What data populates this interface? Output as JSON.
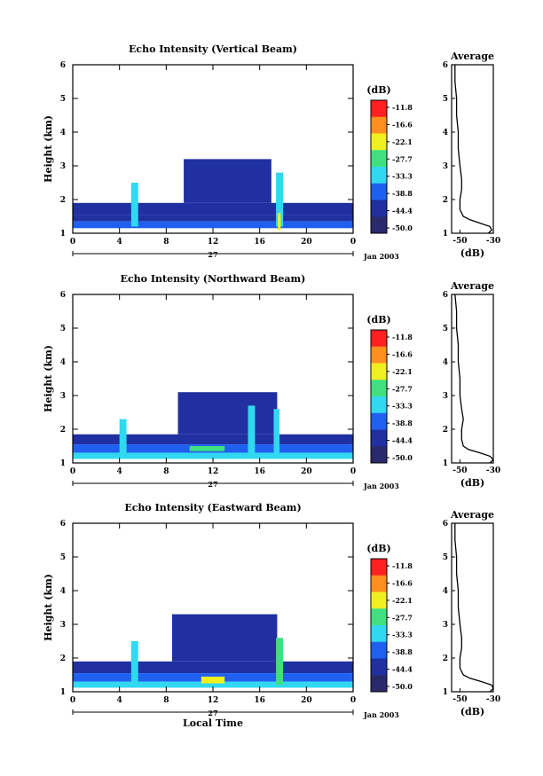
{
  "figure": {
    "x_axis_label": "Local Time",
    "day_label": "27",
    "month_label": "Jan 2003",
    "x_tick_labels": [
      "0",
      "4",
      "8",
      "12",
      "16",
      "20",
      "0"
    ],
    "y_axis_label": "Height (km)",
    "y_tick_labels": [
      "1",
      "2",
      "3",
      "4",
      "5",
      "6"
    ],
    "colorbar_unit": "(dB)",
    "colorbar_labels": [
      "-11.8",
      "-16.6",
      "-22.1",
      "-27.7",
      "-33.3",
      "-38.8",
      "-44.4",
      "-50.0"
    ],
    "profile_title": "Average",
    "profile_x_label": "(dB)",
    "profile_x_ticks": [
      "-50",
      "-30"
    ],
    "colors": {
      "red": "#ff2020",
      "orange": "#ff9020",
      "yellow": "#f0f020",
      "green": "#40e080",
      "cyan": "#30d8f0",
      "blue": "#2060f0",
      "dark_blue": "#2030a0",
      "navy": "#2a2a6a"
    }
  },
  "chart_data": [
    {
      "type": "heatmap",
      "title": "Echo Intensity (Vertical Beam)",
      "xlabel": "",
      "ylabel": "Height (km)",
      "xlim": [
        0,
        24
      ],
      "ylim": [
        1,
        6
      ],
      "x_ticks": [
        0,
        4,
        8,
        12,
        16,
        20,
        24
      ],
      "zlim": [
        -50.0,
        -11.8
      ],
      "z_unit": "dB",
      "layers": [
        {
          "x0": 0.0,
          "x1": 24.0,
          "y0": 1.55,
          "y1": 1.9,
          "z": -46.0
        },
        {
          "x0": 0.0,
          "x1": 24.0,
          "y0": 1.35,
          "y1": 1.55,
          "z": -42.0
        },
        {
          "x0": 0.0,
          "x1": 24.0,
          "y0": 1.15,
          "y1": 1.35,
          "z": -37.0
        },
        {
          "x0": 9.5,
          "x1": 17.0,
          "y0": 1.9,
          "y1": 3.2,
          "z": -46.0
        },
        {
          "x0": 11.0,
          "x1": 13.5,
          "y0": 2.0,
          "y1": 3.0,
          "z": -43.0
        },
        {
          "x0": 5.0,
          "x1": 5.6,
          "y0": 1.2,
          "y1": 2.5,
          "z": -35.0
        },
        {
          "x0": 17.4,
          "x1": 18.0,
          "y0": 1.2,
          "y1": 2.8,
          "z": -33.0
        },
        {
          "x0": 17.55,
          "x1": 17.8,
          "y0": 1.1,
          "y1": 1.6,
          "z": -22.0
        }
      ],
      "profile": {
        "title": "Average",
        "xlabel": "(dB)",
        "xlim": [
          -55,
          -30
        ],
        "heights_km": [
          1.0,
          1.1,
          1.2,
          1.3,
          1.4,
          1.5,
          1.7,
          2.0,
          2.3,
          2.6,
          3.0,
          3.5,
          4.0,
          4.5,
          5.0,
          5.5,
          6.0
        ],
        "values_db": [
          -33,
          -31,
          -32,
          -38,
          -44,
          -48,
          -50,
          -50,
          -49,
          -49,
          -50,
          -51,
          -51,
          -52,
          -52,
          -53,
          -53
        ]
      }
    },
    {
      "type": "heatmap",
      "title": "Echo Intensity (Northward Beam)",
      "xlabel": "",
      "ylabel": "Height (km)",
      "xlim": [
        0,
        24
      ],
      "ylim": [
        1,
        6
      ],
      "x_ticks": [
        0,
        4,
        8,
        12,
        16,
        20,
        24
      ],
      "zlim": [
        -50.0,
        -11.8
      ],
      "z_unit": "dB",
      "layers": [
        {
          "x0": 0.0,
          "x1": 24.0,
          "y0": 1.55,
          "y1": 1.85,
          "z": -46.0
        },
        {
          "x0": 0.0,
          "x1": 24.0,
          "y0": 1.3,
          "y1": 1.55,
          "z": -41.0
        },
        {
          "x0": 0.0,
          "x1": 24.0,
          "y0": 1.12,
          "y1": 1.3,
          "z": -36.0
        },
        {
          "x0": 9.0,
          "x1": 17.5,
          "y0": 1.85,
          "y1": 3.1,
          "z": -46.0
        },
        {
          "x0": 10.0,
          "x1": 13.0,
          "y0": 1.35,
          "y1": 1.5,
          "z": -30.0
        },
        {
          "x0": 4.0,
          "x1": 4.6,
          "y0": 1.2,
          "y1": 2.3,
          "z": -36.0
        },
        {
          "x0": 15.0,
          "x1": 15.6,
          "y0": 1.2,
          "y1": 2.7,
          "z": -36.0
        },
        {
          "x0": 17.2,
          "x1": 17.7,
          "y0": 1.2,
          "y1": 2.6,
          "z": -32.0
        }
      ],
      "profile": {
        "title": "Average",
        "xlabel": "(dB)",
        "xlim": [
          -55,
          -30
        ],
        "heights_km": [
          1.0,
          1.1,
          1.2,
          1.3,
          1.4,
          1.5,
          1.7,
          2.0,
          2.3,
          2.6,
          3.0,
          3.5,
          4.0,
          4.5,
          5.0,
          5.5,
          6.0
        ],
        "values_db": [
          -32,
          -30,
          -32,
          -38,
          -45,
          -48,
          -49,
          -49,
          -48,
          -49,
          -50,
          -50,
          -51,
          -51,
          -52,
          -52,
          -53
        ]
      }
    },
    {
      "type": "heatmap",
      "title": "Echo Intensity (Eastward Beam)",
      "xlabel": "Local Time",
      "ylabel": "Height (km)",
      "xlim": [
        0,
        24
      ],
      "ylim": [
        1,
        6
      ],
      "x_ticks": [
        0,
        4,
        8,
        12,
        16,
        20,
        24
      ],
      "zlim": [
        -50.0,
        -11.8
      ],
      "z_unit": "dB",
      "layers": [
        {
          "x0": 0.0,
          "x1": 24.0,
          "y0": 1.55,
          "y1": 1.9,
          "z": -46.0
        },
        {
          "x0": 0.0,
          "x1": 24.0,
          "y0": 1.3,
          "y1": 1.55,
          "z": -41.0
        },
        {
          "x0": 0.0,
          "x1": 24.0,
          "y0": 1.12,
          "y1": 1.3,
          "z": -36.0
        },
        {
          "x0": 8.5,
          "x1": 17.5,
          "y0": 1.9,
          "y1": 3.3,
          "z": -46.0
        },
        {
          "x0": 11.0,
          "x1": 13.0,
          "y0": 1.25,
          "y1": 1.45,
          "z": -25.0
        },
        {
          "x0": 5.0,
          "x1": 5.6,
          "y0": 1.2,
          "y1": 2.5,
          "z": -36.0
        },
        {
          "x0": 17.4,
          "x1": 18.0,
          "y0": 1.2,
          "y1": 2.6,
          "z": -30.0
        }
      ],
      "profile": {
        "title": "Average",
        "xlabel": "(dB)",
        "xlim": [
          -55,
          -30
        ],
        "heights_km": [
          1.0,
          1.1,
          1.2,
          1.3,
          1.4,
          1.5,
          1.7,
          2.0,
          2.3,
          2.6,
          3.0,
          3.5,
          4.0,
          4.5,
          5.0,
          5.5,
          6.0
        ],
        "values_db": [
          -32,
          -30,
          -31,
          -37,
          -44,
          -48,
          -50,
          -50,
          -49,
          -49,
          -50,
          -51,
          -51,
          -52,
          -52,
          -53,
          -53
        ]
      }
    }
  ]
}
